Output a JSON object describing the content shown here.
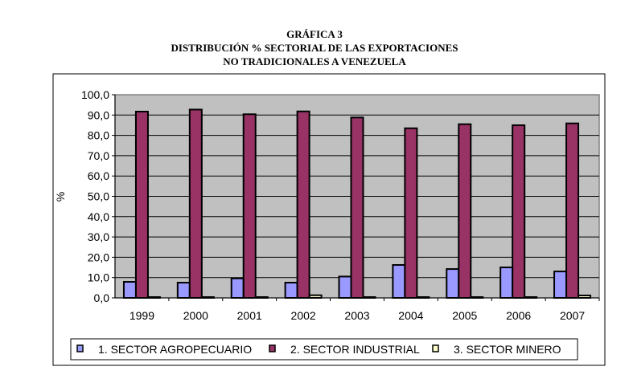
{
  "chart_data": {
    "type": "bar",
    "title_lines": [
      "GRÁFICA  3",
      "DISTRIBUCIÓN % SECTORIAL DE LAS EXPORTACIONES",
      "NO TRADICIONALES A VENEZUELA"
    ],
    "xlabel": "",
    "ylabel": "%",
    "ylim": [
      0,
      100
    ],
    "yticks": [
      "0,0",
      "10,0",
      "20,0",
      "30,0",
      "40,0",
      "50,0",
      "60,0",
      "70,0",
      "80,0",
      "90,0",
      "100,0"
    ],
    "grid": true,
    "legend_position": "bottom",
    "categories": [
      "1999",
      "2000",
      "2001",
      "2002",
      "2003",
      "2004",
      "2005",
      "2006",
      "2007"
    ],
    "series": [
      {
        "name": "1. SECTOR AGROPECUARIO",
        "color": "#9999FF",
        "values": [
          7.9,
          7.5,
          9.6,
          7.5,
          10.5,
          16.2,
          14.2,
          15.0,
          13.0
        ]
      },
      {
        "name": "2. SECTOR INDUSTRIAL",
        "color": "#993366",
        "values": [
          91.7,
          92.7,
          90.4,
          91.8,
          88.8,
          83.5,
          85.5,
          85.0,
          85.9
        ]
      },
      {
        "name": "3. SECTOR MINERO",
        "color": "#FFFFCC",
        "values": [
          0.4,
          0.4,
          0.4,
          1.3,
          0.4,
          0.4,
          0.4,
          0.4,
          1.2
        ]
      }
    ],
    "plot_background": "#C0C0C0"
  }
}
